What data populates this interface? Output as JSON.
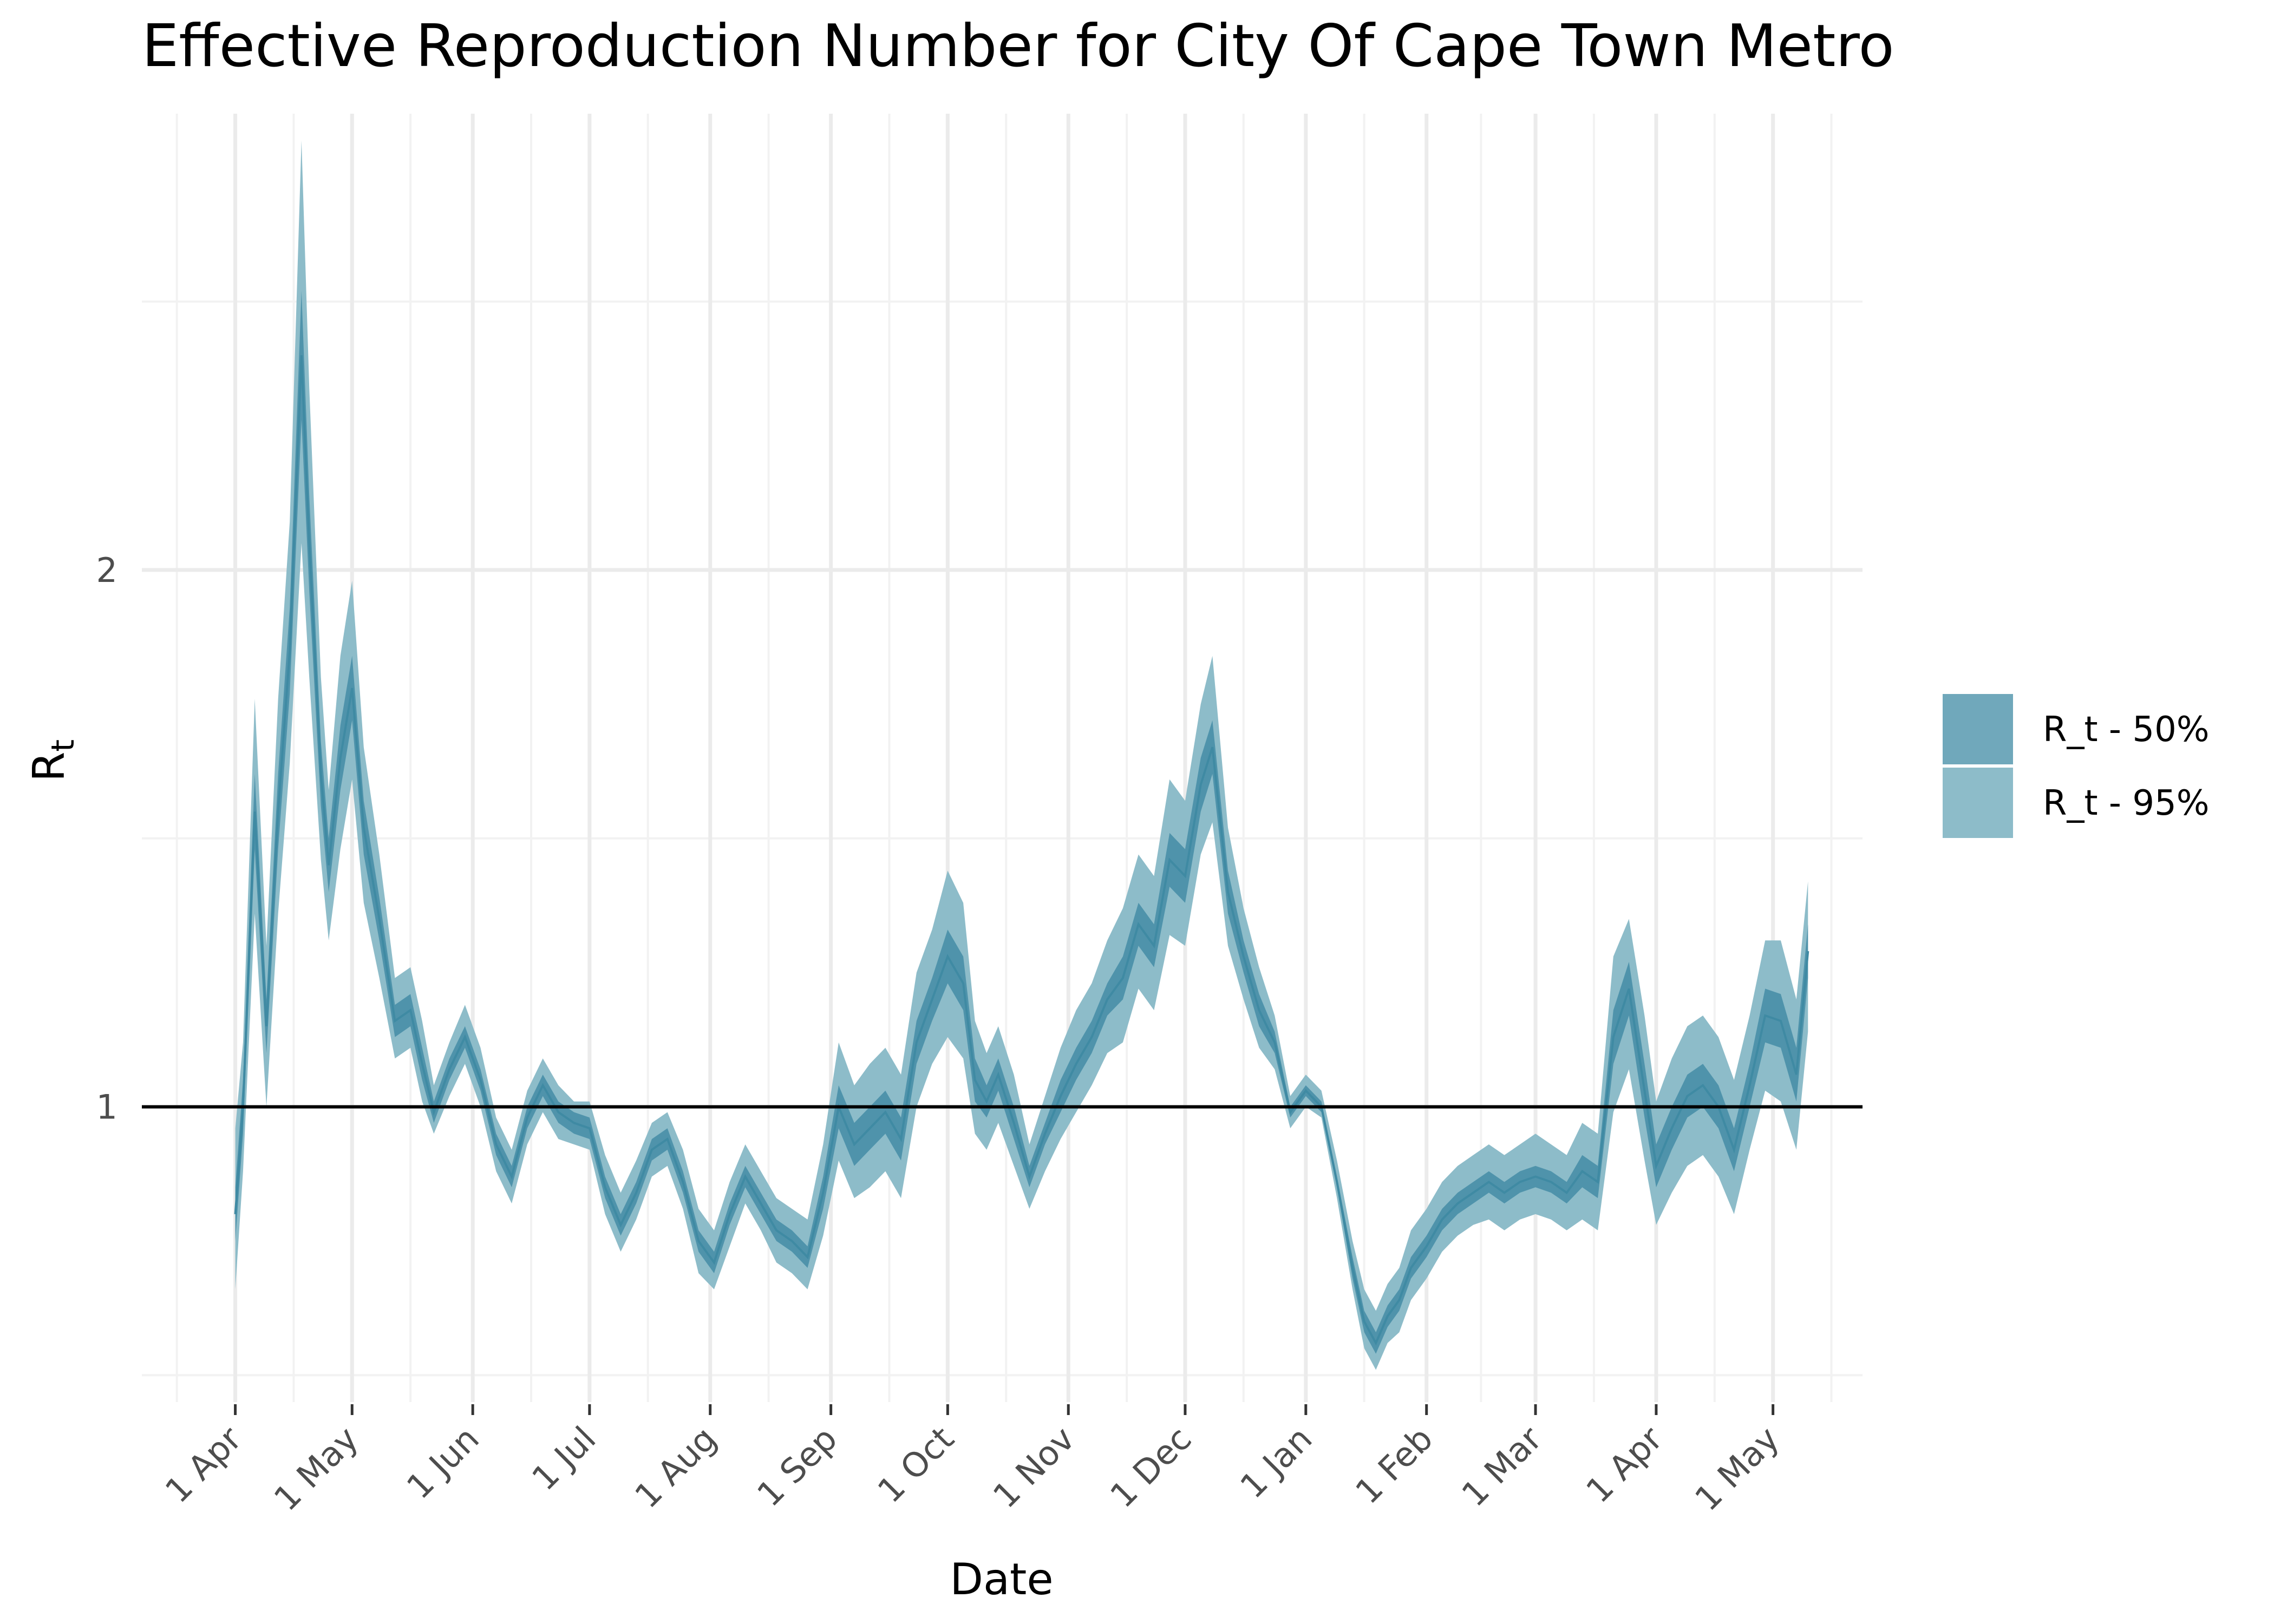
{
  "chart_data": {
    "type": "area",
    "title": "Effective Reproduction Number for City Of Cape Town Metro",
    "xlabel": "Date",
    "ylabel": "R",
    "ylabel_subscript": "t",
    "x_type": "date",
    "xlim": [
      "2020-03-08",
      "2021-05-24"
    ],
    "ylim": [
      0.45,
      2.85
    ],
    "y_ticks": [
      1,
      2
    ],
    "y_tick_labels": [
      "1",
      "2"
    ],
    "x_ticks": [
      "2020-04-01",
      "2020-05-01",
      "2020-06-01",
      "2020-07-01",
      "2020-08-01",
      "2020-09-01",
      "2020-10-01",
      "2020-11-01",
      "2020-12-01",
      "2021-01-01",
      "2021-02-01",
      "2021-03-01",
      "2021-04-01",
      "2021-05-01"
    ],
    "x_tick_labels": [
      "1 Apr",
      "1 May",
      "1 Jun",
      "1 Jul",
      "1 Aug",
      "1 Sep",
      "1 Oct",
      "1 Nov",
      "1 Dec",
      "1 Jan",
      "1 Feb",
      "1 Mar",
      "1 Apr",
      "1 May"
    ],
    "reference_line": 1,
    "grid": true,
    "legend_position": "right",
    "colors": {
      "band_50": "#4f93ab",
      "band_95": "#8dbcc9",
      "median": "#3f8aa3",
      "reference": "#000000"
    },
    "series": [
      {
        "name": "R_t - 50%",
        "x": [
          "2020-04-01",
          "2020-04-03",
          "2020-04-06",
          "2020-04-09",
          "2020-04-12",
          "2020-04-15",
          "2020-04-18",
          "2020-04-20",
          "2020-04-23",
          "2020-04-25",
          "2020-04-28",
          "2020-05-01",
          "2020-05-04",
          "2020-05-08",
          "2020-05-12",
          "2020-05-16",
          "2020-05-19",
          "2020-05-22",
          "2020-05-26",
          "2020-05-30",
          "2020-06-03",
          "2020-06-07",
          "2020-06-11",
          "2020-06-15",
          "2020-06-19",
          "2020-06-23",
          "2020-06-27",
          "2020-07-01",
          "2020-07-05",
          "2020-07-09",
          "2020-07-13",
          "2020-07-17",
          "2020-07-21",
          "2020-07-25",
          "2020-07-29",
          "2020-08-02",
          "2020-08-06",
          "2020-08-10",
          "2020-08-14",
          "2020-08-18",
          "2020-08-22",
          "2020-08-26",
          "2020-08-30",
          "2020-09-03",
          "2020-09-07",
          "2020-09-11",
          "2020-09-15",
          "2020-09-19",
          "2020-09-23",
          "2020-09-27",
          "2020-10-01",
          "2020-10-05",
          "2020-10-08",
          "2020-10-11",
          "2020-10-14",
          "2020-10-18",
          "2020-10-22",
          "2020-10-26",
          "2020-10-30",
          "2020-11-03",
          "2020-11-07",
          "2020-11-11",
          "2020-11-15",
          "2020-11-19",
          "2020-11-23",
          "2020-11-27",
          "2020-12-01",
          "2020-12-05",
          "2020-12-08",
          "2020-12-12",
          "2020-12-16",
          "2020-12-20",
          "2020-12-24",
          "2020-12-28",
          "2021-01-01",
          "2021-01-05",
          "2021-01-09",
          "2021-01-13",
          "2021-01-16",
          "2021-01-19",
          "2021-01-22",
          "2021-01-25",
          "2021-01-28",
          "2021-02-01",
          "2021-02-05",
          "2021-02-09",
          "2021-02-13",
          "2021-02-17",
          "2021-02-21",
          "2021-02-25",
          "2021-03-01",
          "2021-03-05",
          "2021-03-09",
          "2021-03-13",
          "2021-03-17",
          "2021-03-21",
          "2021-03-25",
          "2021-03-29",
          "2021-04-01",
          "2021-04-05",
          "2021-04-09",
          "2021-04-13",
          "2021-04-17",
          "2021-04-21",
          "2021-04-25",
          "2021-04-29",
          "2021-05-03",
          "2021-05-07",
          "2021-05-10"
        ],
        "median": [
          0.8,
          1.0,
          1.55,
          1.15,
          1.55,
          1.85,
          2.4,
          2.05,
          1.62,
          1.45,
          1.65,
          1.78,
          1.52,
          1.35,
          1.16,
          1.18,
          1.08,
          0.99,
          1.07,
          1.13,
          1.05,
          0.93,
          0.87,
          0.98,
          1.04,
          0.99,
          0.97,
          0.96,
          0.85,
          0.78,
          0.84,
          0.92,
          0.94,
          0.86,
          0.75,
          0.71,
          0.8,
          0.87,
          0.82,
          0.77,
          0.75,
          0.72,
          0.84,
          1.0,
          0.93,
          0.96,
          0.99,
          0.94,
          1.12,
          1.2,
          1.28,
          1.23,
          1.05,
          1.01,
          1.06,
          0.97,
          0.87,
          0.95,
          1.02,
          1.08,
          1.13,
          1.2,
          1.24,
          1.34,
          1.3,
          1.46,
          1.43,
          1.6,
          1.67,
          1.4,
          1.28,
          1.18,
          1.12,
          0.99,
          1.03,
          1.0,
          0.86,
          0.7,
          0.6,
          0.56,
          0.61,
          0.64,
          0.7,
          0.74,
          0.79,
          0.82,
          0.84,
          0.86,
          0.84,
          0.86,
          0.87,
          0.86,
          0.84,
          0.88,
          0.86,
          1.13,
          1.22,
          1.03,
          0.89,
          0.96,
          1.02,
          1.04,
          1.0,
          0.92,
          1.04,
          1.17,
          1.16,
          1.06,
          1.29
        ],
        "lo50": [
          0.75,
          0.95,
          1.48,
          1.1,
          1.48,
          1.77,
          2.28,
          1.96,
          1.56,
          1.4,
          1.59,
          1.72,
          1.47,
          1.31,
          1.13,
          1.15,
          1.05,
          0.97,
          1.05,
          1.11,
          1.03,
          0.91,
          0.85,
          0.96,
          1.02,
          0.97,
          0.95,
          0.94,
          0.83,
          0.76,
          0.82,
          0.9,
          0.92,
          0.84,
          0.73,
          0.69,
          0.78,
          0.85,
          0.8,
          0.75,
          0.73,
          0.7,
          0.81,
          0.96,
          0.89,
          0.92,
          0.95,
          0.9,
          1.08,
          1.16,
          1.23,
          1.18,
          1.01,
          0.98,
          1.03,
          0.94,
          0.85,
          0.93,
          0.99,
          1.05,
          1.1,
          1.17,
          1.2,
          1.3,
          1.26,
          1.41,
          1.38,
          1.55,
          1.62,
          1.36,
          1.25,
          1.15,
          1.1,
          0.98,
          1.02,
          0.99,
          0.85,
          0.68,
          0.58,
          0.54,
          0.59,
          0.62,
          0.68,
          0.72,
          0.77,
          0.8,
          0.82,
          0.84,
          0.82,
          0.84,
          0.85,
          0.84,
          0.82,
          0.85,
          0.83,
          1.08,
          1.17,
          0.98,
          0.85,
          0.92,
          0.98,
          1.0,
          0.96,
          0.88,
          1.0,
          1.12,
          1.11,
          1.01,
          1.24
        ],
        "hi50": [
          0.85,
          1.05,
          1.62,
          1.2,
          1.62,
          1.93,
          2.52,
          2.14,
          1.68,
          1.5,
          1.71,
          1.84,
          1.57,
          1.39,
          1.19,
          1.21,
          1.11,
          1.01,
          1.09,
          1.15,
          1.07,
          0.95,
          0.89,
          1.0,
          1.06,
          1.01,
          0.99,
          0.98,
          0.87,
          0.8,
          0.86,
          0.94,
          0.96,
          0.88,
          0.77,
          0.73,
          0.82,
          0.89,
          0.84,
          0.79,
          0.77,
          0.74,
          0.87,
          1.04,
          0.97,
          1.0,
          1.03,
          0.98,
          1.16,
          1.24,
          1.33,
          1.28,
          1.09,
          1.04,
          1.09,
          1.0,
          0.89,
          0.97,
          1.05,
          1.11,
          1.16,
          1.23,
          1.28,
          1.38,
          1.34,
          1.51,
          1.48,
          1.65,
          1.72,
          1.44,
          1.31,
          1.21,
          1.14,
          1.0,
          1.04,
          1.01,
          0.87,
          0.72,
          0.62,
          0.58,
          0.63,
          0.66,
          0.72,
          0.76,
          0.81,
          0.84,
          0.86,
          0.88,
          0.86,
          0.88,
          0.89,
          0.88,
          0.86,
          0.91,
          0.89,
          1.18,
          1.27,
          1.08,
          0.93,
          1.0,
          1.06,
          1.08,
          1.04,
          0.96,
          1.08,
          1.22,
          1.21,
          1.11,
          1.34
        ]
      },
      {
        "name": "R_t - 95%",
        "lo95": [
          0.66,
          0.88,
          1.36,
          1.0,
          1.36,
          1.64,
          2.05,
          1.8,
          1.46,
          1.31,
          1.48,
          1.61,
          1.38,
          1.24,
          1.09,
          1.11,
          1.01,
          0.95,
          1.02,
          1.08,
          1.0,
          0.88,
          0.82,
          0.93,
          0.99,
          0.94,
          0.93,
          0.92,
          0.8,
          0.73,
          0.79,
          0.87,
          0.89,
          0.81,
          0.69,
          0.66,
          0.74,
          0.82,
          0.77,
          0.71,
          0.69,
          0.66,
          0.76,
          0.9,
          0.83,
          0.85,
          0.88,
          0.83,
          1.0,
          1.08,
          1.13,
          1.09,
          0.95,
          0.92,
          0.97,
          0.89,
          0.81,
          0.88,
          0.94,
          0.99,
          1.04,
          1.1,
          1.12,
          1.22,
          1.18,
          1.32,
          1.3,
          1.47,
          1.53,
          1.3,
          1.2,
          1.11,
          1.07,
          0.96,
          1.0,
          0.98,
          0.83,
          0.66,
          0.55,
          0.51,
          0.56,
          0.58,
          0.64,
          0.68,
          0.73,
          0.76,
          0.78,
          0.79,
          0.77,
          0.79,
          0.8,
          0.79,
          0.77,
          0.79,
          0.77,
          0.99,
          1.07,
          0.9,
          0.78,
          0.84,
          0.89,
          0.91,
          0.87,
          0.8,
          0.92,
          1.03,
          1.01,
          0.92,
          1.14
        ],
        "hi95": [
          0.96,
          1.12,
          1.76,
          1.3,
          1.76,
          2.09,
          2.8,
          2.34,
          1.8,
          1.59,
          1.84,
          1.98,
          1.67,
          1.47,
          1.24,
          1.26,
          1.16,
          1.04,
          1.12,
          1.19,
          1.11,
          0.98,
          0.92,
          1.03,
          1.09,
          1.04,
          1.01,
          1.01,
          0.91,
          0.84,
          0.9,
          0.97,
          0.99,
          0.92,
          0.81,
          0.77,
          0.86,
          0.93,
          0.88,
          0.83,
          0.81,
          0.79,
          0.93,
          1.12,
          1.04,
          1.08,
          1.11,
          1.06,
          1.25,
          1.33,
          1.44,
          1.38,
          1.16,
          1.1,
          1.15,
          1.06,
          0.93,
          1.02,
          1.11,
          1.18,
          1.23,
          1.31,
          1.37,
          1.47,
          1.43,
          1.61,
          1.57,
          1.75,
          1.84,
          1.52,
          1.37,
          1.26,
          1.17,
          1.02,
          1.06,
          1.03,
          0.9,
          0.75,
          0.66,
          0.62,
          0.67,
          0.7,
          0.77,
          0.81,
          0.86,
          0.89,
          0.91,
          0.93,
          0.91,
          0.93,
          0.95,
          0.93,
          0.91,
          0.97,
          0.95,
          1.28,
          1.35,
          1.17,
          1.01,
          1.09,
          1.15,
          1.17,
          1.13,
          1.05,
          1.17,
          1.31,
          1.31,
          1.2,
          1.42
        ]
      }
    ],
    "legend": [
      {
        "label": "R_t - 50%",
        "color": "#70a8bb"
      },
      {
        "label": "R_t - 95%",
        "color": "#8dbcc9"
      }
    ]
  }
}
